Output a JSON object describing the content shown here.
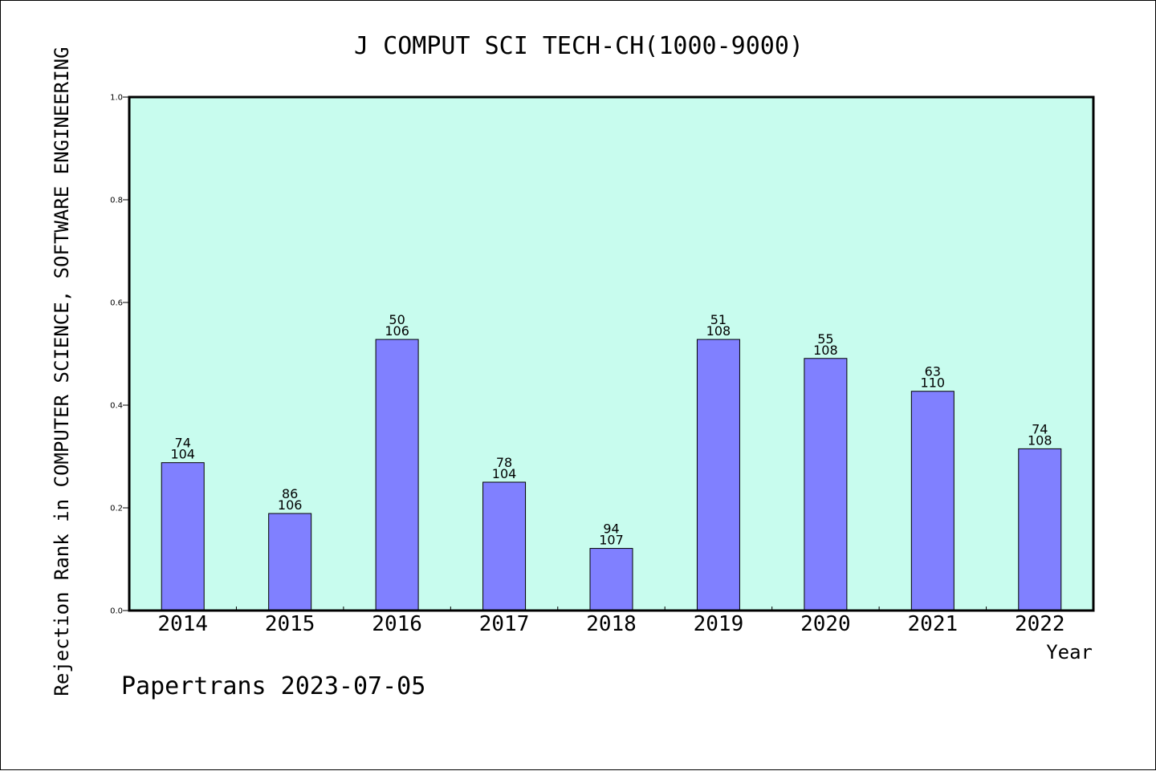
{
  "chart_data": {
    "type": "bar",
    "title": "J COMPUT SCI TECH-CH(1000-9000)",
    "ylabel": "Rejection Rank in COMPUTER SCIENCE, SOFTWARE ENGINEERING",
    "xlabel": "Year",
    "ylim": [
      0,
      1
    ],
    "yticks": [
      "0.0",
      "0.2",
      "0.4",
      "0.6",
      "0.8",
      "1.0"
    ],
    "ytick_values": [
      0,
      0.2,
      0.4,
      0.6,
      0.8,
      1.0
    ],
    "categories": [
      "2014",
      "2015",
      "2016",
      "2017",
      "2018",
      "2019",
      "2020",
      "2021",
      "2022"
    ],
    "values": [
      0.288,
      0.189,
      0.528,
      0.25,
      0.121,
      0.528,
      0.491,
      0.427,
      0.315
    ],
    "labels_top": [
      "74",
      "86",
      "50",
      "78",
      "94",
      "51",
      "55",
      "63",
      "74"
    ],
    "labels_bottom": [
      "104",
      "106",
      "106",
      "104",
      "107",
      "108",
      "108",
      "110",
      "108"
    ],
    "grid": false,
    "colors": {
      "plot_background": "#c8fcee",
      "bar_fill": "#8080ff",
      "bar_stroke": "#000000"
    }
  },
  "footer": {
    "text": "Papertrans 2023-07-05"
  }
}
